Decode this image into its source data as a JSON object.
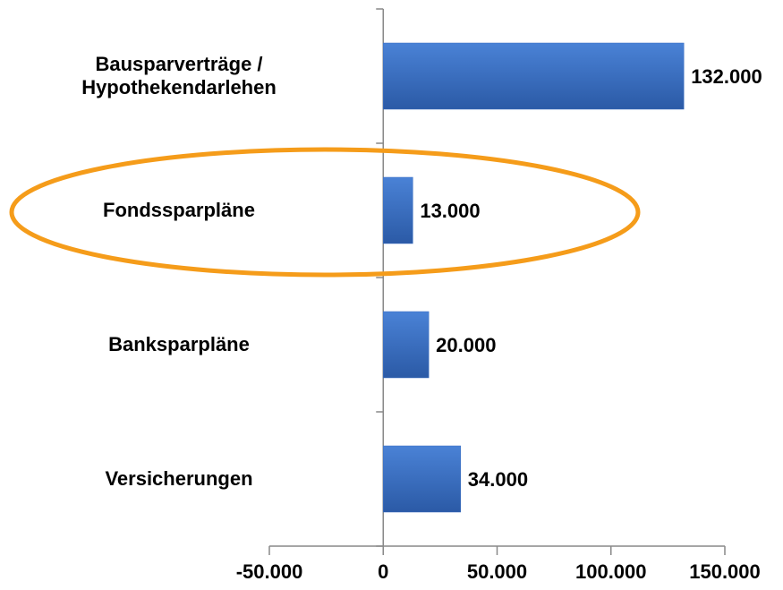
{
  "chart_data": {
    "type": "barh",
    "categories": [
      "Bausparverträge / Hypothekendarlehen",
      "Fondssparpläne",
      "Banksparpläne",
      "Versicherungen"
    ],
    "values": [
      132000,
      13000,
      20000,
      34000
    ],
    "value_labels": [
      "132.000",
      "13.000",
      "20.000",
      "34.000"
    ],
    "color": "#3a6fc2",
    "xlim": [
      -50000,
      150000
    ],
    "xticks": [
      {
        "value": -50000,
        "label": "-50.000",
        "color": "#e8161b"
      },
      0,
      {
        "value": 50000,
        "label": "50.000"
      },
      {
        "value": 100000,
        "label": "100.000"
      },
      {
        "value": 150000,
        "label": "150.000"
      }
    ],
    "grid": false
  }
}
